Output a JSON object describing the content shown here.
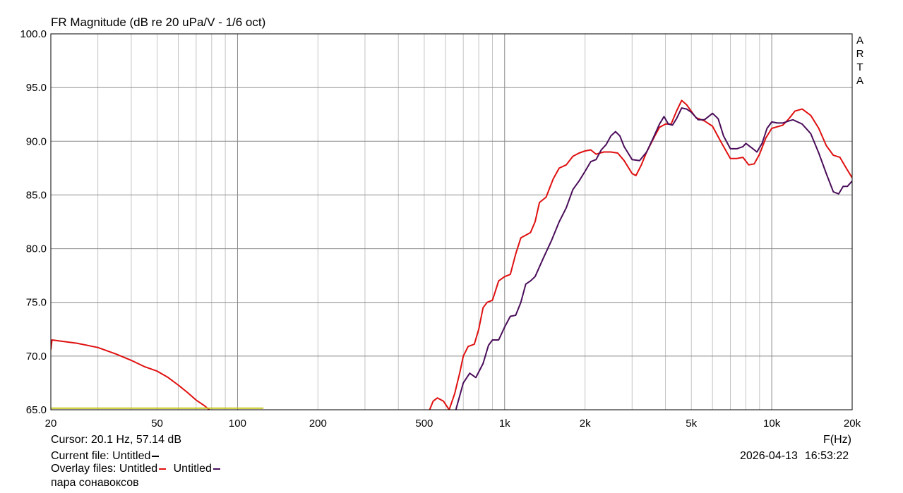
{
  "chart_data": {
    "type": "line",
    "title": "FR Magnitude (dB re 20 uPa/V - 1/6 oct)",
    "xlabel": "F(Hz)",
    "ylabel": "",
    "xscale": "log",
    "xlim": [
      20,
      20000
    ],
    "ylim": [
      65,
      100
    ],
    "grid": true,
    "x_tick_labels": [
      {
        "value": 20,
        "label": "20"
      },
      {
        "value": 50,
        "label": "50"
      },
      {
        "value": 100,
        "label": "100"
      },
      {
        "value": 200,
        "label": "200"
      },
      {
        "value": 500,
        "label": "500"
      },
      {
        "value": 1000,
        "label": "1k"
      },
      {
        "value": 2000,
        "label": "2k"
      },
      {
        "value": 5000,
        "label": "5k"
      },
      {
        "value": 10000,
        "label": "10k"
      },
      {
        "value": 20000,
        "label": "20k"
      }
    ],
    "y_tick_labels": [
      {
        "value": 100,
        "label": "100.0"
      },
      {
        "value": 95,
        "label": "95.0"
      },
      {
        "value": 90,
        "label": "90.0"
      },
      {
        "value": 85,
        "label": "85.0"
      },
      {
        "value": 80,
        "label": "80.0"
      },
      {
        "value": 75,
        "label": "75.0"
      },
      {
        "value": 70,
        "label": "70.0"
      },
      {
        "value": 65,
        "label": "65.0"
      }
    ],
    "series": [
      {
        "color": "#e01010",
        "points": [
          [
            20,
            70.6
          ],
          [
            20.2,
            71.5
          ],
          [
            25,
            71.2
          ],
          [
            30,
            70.8
          ],
          [
            35,
            70.2
          ],
          [
            40,
            69.6
          ],
          [
            45,
            69.0
          ],
          [
            50,
            68.6
          ],
          [
            55,
            68.0
          ],
          [
            60,
            67.3
          ],
          [
            65,
            66.6
          ],
          [
            70,
            65.9
          ],
          [
            75,
            65.4
          ],
          [
            80,
            64.8
          ],
          [
            520,
            64.8
          ],
          [
            540,
            65.8
          ],
          [
            560,
            66.1
          ],
          [
            590,
            65.8
          ],
          [
            620,
            65.0
          ],
          [
            650,
            66.5
          ],
          [
            680,
            68.5
          ],
          [
            700,
            70.0
          ],
          [
            730,
            70.9
          ],
          [
            770,
            71.1
          ],
          [
            800,
            72.5
          ],
          [
            830,
            74.5
          ],
          [
            860,
            75.0
          ],
          [
            900,
            75.2
          ],
          [
            950,
            77.0
          ],
          [
            1000,
            77.4
          ],
          [
            1050,
            77.6
          ],
          [
            1100,
            79.5
          ],
          [
            1150,
            81.0
          ],
          [
            1250,
            81.5
          ],
          [
            1300,
            82.5
          ],
          [
            1350,
            84.3
          ],
          [
            1430,
            84.8
          ],
          [
            1520,
            86.5
          ],
          [
            1600,
            87.5
          ],
          [
            1700,
            87.8
          ],
          [
            1800,
            88.6
          ],
          [
            1900,
            88.9
          ],
          [
            2000,
            89.1
          ],
          [
            2100,
            89.2
          ],
          [
            2200,
            88.8
          ],
          [
            2350,
            89.0
          ],
          [
            2500,
            89.0
          ],
          [
            2650,
            88.9
          ],
          [
            2800,
            88.2
          ],
          [
            3000,
            87.0
          ],
          [
            3100,
            86.8
          ],
          [
            3250,
            87.8
          ],
          [
            3400,
            89.0
          ],
          [
            3650,
            90.5
          ],
          [
            3800,
            91.3
          ],
          [
            4000,
            91.6
          ],
          [
            4200,
            91.6
          ],
          [
            4400,
            92.8
          ],
          [
            4600,
            93.8
          ],
          [
            4800,
            93.4
          ],
          [
            5200,
            92.2
          ],
          [
            5600,
            91.9
          ],
          [
            6000,
            91.4
          ],
          [
            6500,
            89.8
          ],
          [
            7000,
            88.4
          ],
          [
            7400,
            88.4
          ],
          [
            7800,
            88.5
          ],
          [
            8200,
            87.8
          ],
          [
            8600,
            87.9
          ],
          [
            9000,
            88.8
          ],
          [
            9500,
            90.3
          ],
          [
            10000,
            91.2
          ],
          [
            11000,
            91.5
          ],
          [
            11600,
            92.1
          ],
          [
            12200,
            92.8
          ],
          [
            13000,
            93.0
          ],
          [
            14000,
            92.4
          ],
          [
            15000,
            91.2
          ],
          [
            16000,
            89.6
          ],
          [
            17000,
            88.7
          ],
          [
            18000,
            88.5
          ],
          [
            19000,
            87.5
          ],
          [
            20000,
            86.6
          ]
        ]
      },
      {
        "color": "#4a0e5a",
        "points": [
          [
            600,
            63.0
          ],
          [
            630,
            63.0
          ],
          [
            660,
            65.2
          ],
          [
            700,
            67.5
          ],
          [
            740,
            68.4
          ],
          [
            780,
            68.0
          ],
          [
            830,
            69.3
          ],
          [
            870,
            71.0
          ],
          [
            900,
            71.5
          ],
          [
            950,
            71.5
          ],
          [
            1000,
            72.7
          ],
          [
            1050,
            73.7
          ],
          [
            1100,
            73.8
          ],
          [
            1150,
            75.0
          ],
          [
            1200,
            76.7
          ],
          [
            1250,
            77.0
          ],
          [
            1300,
            77.4
          ],
          [
            1400,
            79.2
          ],
          [
            1500,
            80.8
          ],
          [
            1600,
            82.5
          ],
          [
            1700,
            83.8
          ],
          [
            1800,
            85.5
          ],
          [
            1900,
            86.3
          ],
          [
            2000,
            87.2
          ],
          [
            2100,
            88.1
          ],
          [
            2200,
            88.3
          ],
          [
            2300,
            89.2
          ],
          [
            2400,
            89.7
          ],
          [
            2500,
            90.5
          ],
          [
            2600,
            90.9
          ],
          [
            2700,
            90.5
          ],
          [
            2800,
            89.5
          ],
          [
            3000,
            88.3
          ],
          [
            3200,
            88.2
          ],
          [
            3400,
            89.0
          ],
          [
            3600,
            90.3
          ],
          [
            3800,
            91.6
          ],
          [
            3950,
            92.3
          ],
          [
            4100,
            91.6
          ],
          [
            4250,
            91.5
          ],
          [
            4400,
            92.1
          ],
          [
            4600,
            93.1
          ],
          [
            4800,
            93.0
          ],
          [
            5000,
            92.7
          ],
          [
            5300,
            92.0
          ],
          [
            5600,
            92.0
          ],
          [
            6000,
            92.6
          ],
          [
            6300,
            92.1
          ],
          [
            6600,
            90.5
          ],
          [
            7000,
            89.3
          ],
          [
            7400,
            89.3
          ],
          [
            7800,
            89.5
          ],
          [
            8000,
            89.8
          ],
          [
            8400,
            89.4
          ],
          [
            8800,
            89.0
          ],
          [
            9200,
            89.8
          ],
          [
            9600,
            91.2
          ],
          [
            10000,
            91.8
          ],
          [
            10500,
            91.7
          ],
          [
            11000,
            91.7
          ],
          [
            11600,
            91.9
          ],
          [
            12000,
            92.0
          ],
          [
            13000,
            91.6
          ],
          [
            14000,
            90.7
          ],
          [
            15000,
            88.9
          ],
          [
            16000,
            87.0
          ],
          [
            17000,
            85.3
          ],
          [
            17800,
            85.1
          ],
          [
            18500,
            85.8
          ],
          [
            19200,
            85.8
          ],
          [
            20000,
            86.3
          ]
        ]
      },
      {
        "color": "#c8c820",
        "points": [
          [
            20,
            65.15
          ],
          [
            125,
            65.15
          ]
        ]
      }
    ]
  },
  "chart_text": {
    "title": "FR Magnitude (dB re 20 uPa/V - 1/6 oct)",
    "xunit": "F(Hz)",
    "arta": [
      "A",
      "R",
      "T",
      "A"
    ]
  },
  "footer": {
    "cursor": "Cursor: 20.1 Hz, 57.14 dB",
    "current_file_label": "Current file: Untitled",
    "current_file_color": "#000000",
    "overlay_label": "Overlay files: Untitled",
    "overlay1_color": "#e01010",
    "overlay2_label": "Untitled",
    "overlay2_color": "#4a0e5a",
    "note": "пара сонавоксов",
    "date": "2026-04-13",
    "time": "16:53:22"
  }
}
